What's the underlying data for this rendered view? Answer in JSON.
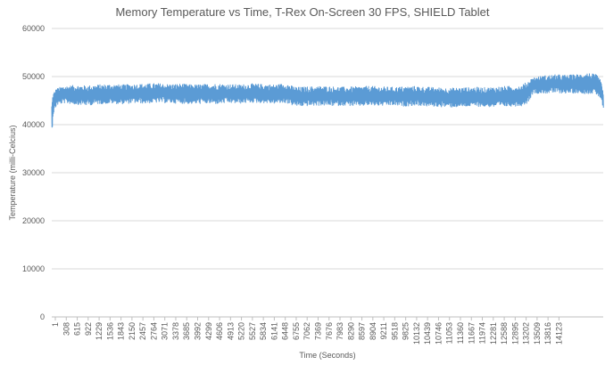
{
  "chart_data": {
    "type": "line",
    "title": "Memory Temperature vs Time, T-Rex On-Screen 30 FPS, SHIELD Tablet",
    "xlabel": "Time (Seconds)",
    "ylabel": "Temperature (milli-Celcius)",
    "ylim": [
      0,
      60000
    ],
    "yticks": [
      0,
      10000,
      20000,
      30000,
      40000,
      50000,
      60000
    ],
    "xlim": [
      1,
      14430
    ],
    "xtick_labels": [
      "1",
      "308",
      "615",
      "922",
      "1229",
      "1536",
      "1843",
      "2150",
      "2457",
      "2764",
      "3071",
      "3378",
      "3685",
      "3992",
      "4299",
      "4606",
      "4913",
      "5220",
      "5527",
      "5834",
      "6141",
      "6448",
      "6755",
      "7062",
      "7369",
      "7676",
      "7983",
      "8290",
      "8597",
      "8904",
      "9211",
      "9518",
      "9825",
      "10132",
      "10439",
      "10746",
      "11053",
      "11360",
      "11667",
      "11974",
      "12281",
      "12588",
      "12895",
      "13202",
      "13509",
      "13816",
      "14123"
    ],
    "grid": true,
    "legend": "none",
    "series_color": "#5B9BD5",
    "series": [
      {
        "x": [
          1,
          30,
          120,
          300,
          615,
          922,
          1229,
          1536,
          1843,
          2150,
          2457,
          2764,
          3071,
          3378,
          3685,
          3992,
          4299,
          4606,
          4913,
          5220,
          5527,
          5834,
          6141,
          6300,
          6448,
          6755,
          7062,
          7369,
          7676,
          7983,
          8290,
          8597,
          8904,
          9211,
          9518,
          9825,
          10132,
          10439,
          10746,
          11053,
          11360,
          11667,
          11974,
          12281,
          12450,
          12588,
          12895,
          13202,
          13509,
          13816,
          14000,
          14123,
          14250,
          14350,
          14430
        ],
        "lower": [
          38000,
          42000,
          44000,
          44500,
          44200,
          44000,
          44300,
          44400,
          44300,
          44500,
          44400,
          44600,
          44500,
          44400,
          44300,
          44400,
          44300,
          44500,
          44400,
          44600,
          44500,
          44400,
          44500,
          44000,
          43800,
          43900,
          44000,
          43900,
          44000,
          43800,
          44000,
          43900,
          44000,
          43800,
          44000,
          43800,
          43700,
          43600,
          43700,
          43800,
          43700,
          43600,
          43800,
          43900,
          44500,
          46500,
          46500,
          46600,
          46500,
          46600,
          46400,
          46500,
          46200,
          45500,
          43000
        ],
        "upper": [
          44500,
          46500,
          47500,
          48000,
          48200,
          48100,
          48300,
          48400,
          48300,
          48400,
          48500,
          48600,
          48400,
          48500,
          48300,
          48400,
          48500,
          48400,
          48300,
          48500,
          48400,
          48300,
          48600,
          48000,
          47800,
          47900,
          48000,
          47900,
          47800,
          47900,
          48000,
          47900,
          47800,
          47900,
          48000,
          47800,
          47700,
          47600,
          47700,
          47800,
          47700,
          47900,
          48000,
          48100,
          49000,
          49800,
          50200,
          50400,
          50300,
          50500,
          50800,
          50600,
          50400,
          49500,
          47000
        ]
      }
    ]
  }
}
